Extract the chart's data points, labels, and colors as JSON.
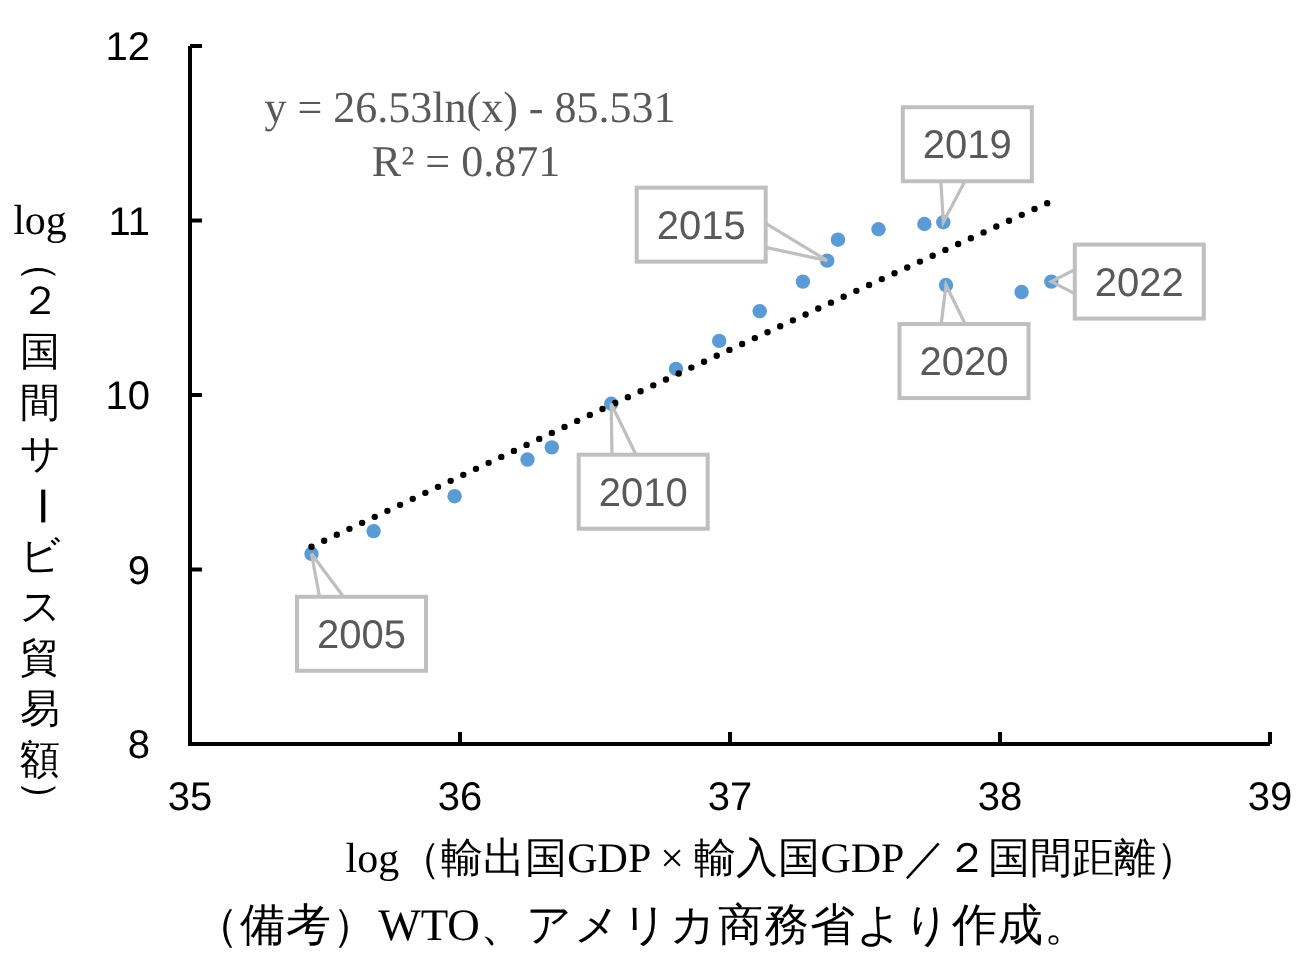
{
  "chart_data": {
    "type": "scatter",
    "xlabel": "log（輸出国GDP × 輸入国GDP／２国間距離）",
    "ylabel": "log（２国間サービス貿易額）",
    "xlim": [
      35,
      39
    ],
    "ylim": [
      8,
      12
    ],
    "xticks": [
      35,
      36,
      37,
      38,
      39
    ],
    "yticks": [
      8,
      9,
      10,
      11,
      12
    ],
    "series": [
      {
        "color": "#5b9bd5",
        "marker": "circle",
        "x": [
          35.45,
          35.68,
          35.98,
          36.25,
          36.34,
          36.56,
          36.8,
          36.96,
          37.11,
          37.27,
          37.36,
          37.4,
          37.55,
          37.72,
          37.79,
          37.8,
          38.08,
          38.19
        ],
        "values": [
          9.09,
          9.22,
          9.42,
          9.63,
          9.7,
          9.95,
          10.15,
          10.31,
          10.48,
          10.65,
          10.77,
          10.89,
          10.95,
          10.98,
          10.99,
          10.63,
          10.59,
          10.65
        ]
      },
      {
        "type": "line",
        "color": "#000000",
        "marker": "none",
        "line_style": "dotted",
        "x": [
          35.45,
          36.5,
          37.5,
          38.19
        ],
        "values": [
          9.13,
          9.9,
          10.62,
          11.11
        ]
      }
    ],
    "annotations": [
      "y = 26.53ln(x) - 85.531",
      "R² = 0.871",
      {
        "text": "2005",
        "x": 35.45,
        "y": 9.09
      },
      {
        "text": "2010",
        "x": 36.56,
        "y": 9.95
      },
      {
        "text": "2015",
        "x": 37.36,
        "y": 10.77
      },
      {
        "text": "2019",
        "x": 37.79,
        "y": 10.99
      },
      {
        "text": "2020",
        "x": 37.8,
        "y": 10.63
      },
      {
        "text": "2022",
        "x": 38.19,
        "y": 10.65
      },
      "（備考）WTO、アメリカ商務省より作成。"
    ]
  }
}
